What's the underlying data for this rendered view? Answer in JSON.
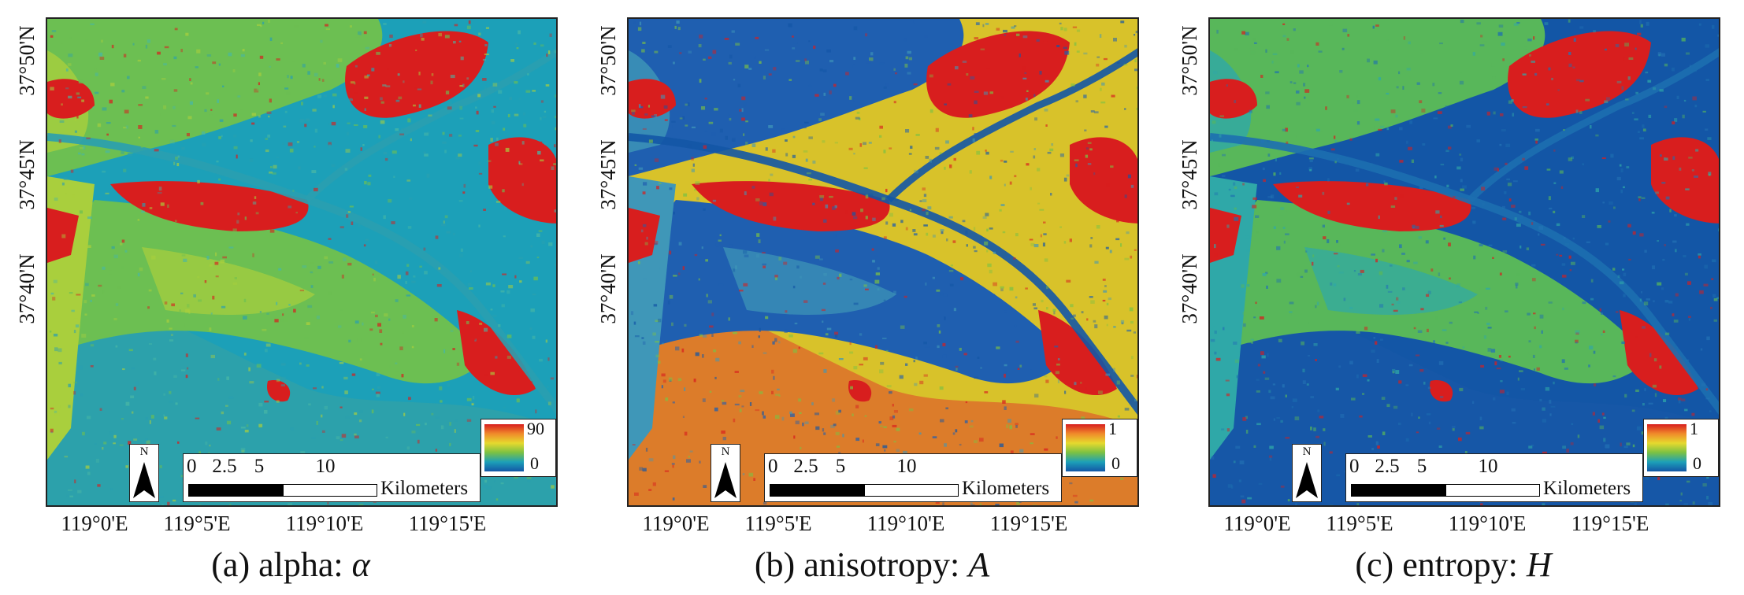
{
  "colors": {
    "high": "#d81e1e",
    "mid": "#7cc143",
    "low": "#1356a6",
    "teal": "#1ca0b8"
  },
  "panels": [
    {
      "id": "a",
      "caption": "(a) alpha: ",
      "symbol": "α",
      "lat_ticks": [
        "37°50'N",
        "37°45'N",
        "37°40'N"
      ],
      "lon_ticks": [
        "119°0'E",
        "119°5'E",
        "119°10'E",
        "119°15'E"
      ],
      "north_label": "N",
      "scale_ticks": [
        "0",
        "2.5",
        "5",
        "10"
      ],
      "scale_unit": "Kilometers",
      "legend_max": "90",
      "legend_min": "0"
    },
    {
      "id": "b",
      "caption": "(b) anisotropy: ",
      "symbol": "A",
      "lat_ticks": [
        "37°50'N",
        "37°45'N",
        "37°40'N"
      ],
      "lon_ticks": [
        "119°0'E",
        "119°5'E",
        "119°10'E",
        "119°15'E"
      ],
      "north_label": "N",
      "scale_ticks": [
        "0",
        "2.5",
        "5",
        "10"
      ],
      "scale_unit": "Kilometers",
      "legend_max": "1",
      "legend_min": "0"
    },
    {
      "id": "c",
      "caption": "(c) entropy: ",
      "symbol": "H",
      "lat_ticks": [
        "37°50'N",
        "37°45'N",
        "37°40'N"
      ],
      "lon_ticks": [
        "119°0'E",
        "119°5'E",
        "119°10'E",
        "119°15'E"
      ],
      "north_label": "N",
      "scale_ticks": [
        "0",
        "2.5",
        "5",
        "10"
      ],
      "scale_unit": "Kilometers",
      "legend_max": "1",
      "legend_min": "0"
    }
  ]
}
